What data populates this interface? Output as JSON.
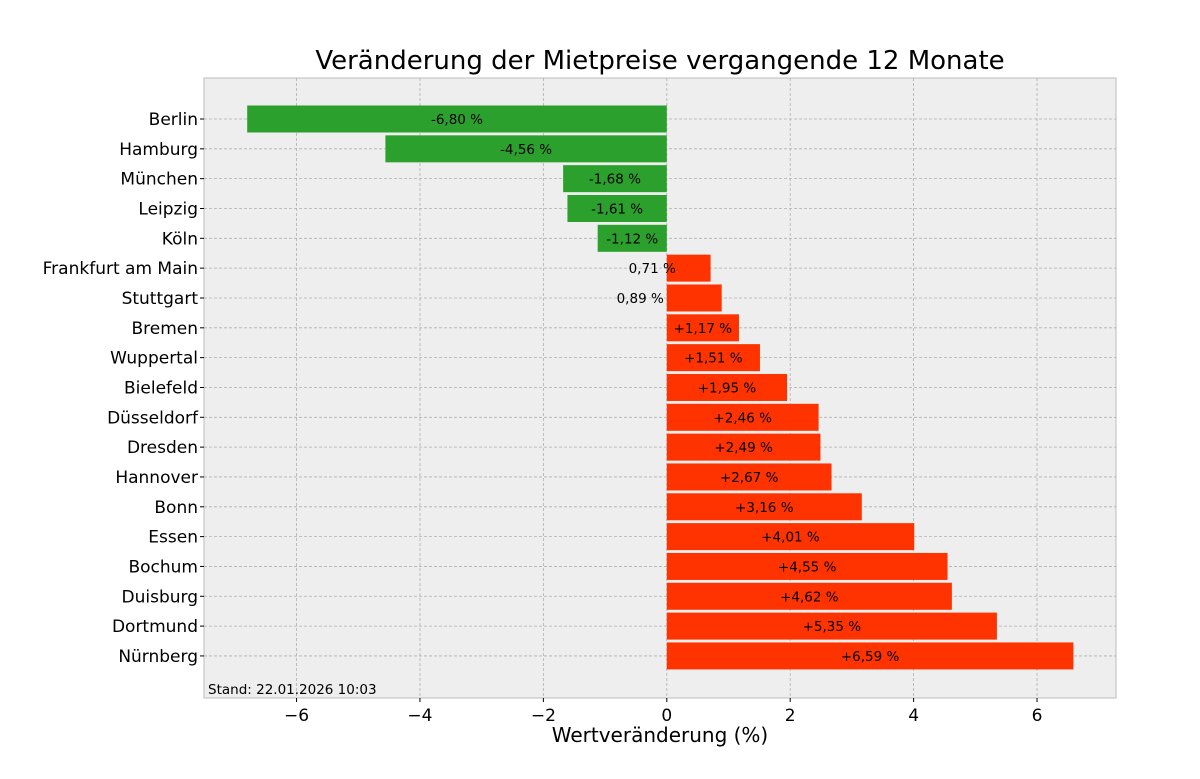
{
  "chart_data": {
    "type": "bar",
    "orientation": "horizontal",
    "title": "Veränderung der Mietpreise vergangende 12 Monate",
    "xlabel": "Wertveränderung (%)",
    "ylabel": "",
    "xlim": [
      -7.5,
      7.28
    ],
    "xticks": [
      -6,
      -4,
      -2,
      0,
      2,
      4,
      6
    ],
    "xtick_labels": [
      "−6",
      "−4",
      "−2",
      "0",
      "2",
      "4",
      "6"
    ],
    "grid": true,
    "annotation": "Stand: 22.01.2026 10:03",
    "colors": {
      "negative": "#2ca02c",
      "positive": "#ff3300",
      "background": "#eeeeee",
      "grid": "#b0b0b0"
    },
    "categories": [
      "Berlin",
      "Hamburg",
      "München",
      "Leipzig",
      "Köln",
      "Frankfurt am Main",
      "Stuttgart",
      "Bremen",
      "Wuppertal",
      "Bielefeld",
      "Düsseldorf",
      "Dresden",
      "Hannover",
      "Bonn",
      "Essen",
      "Bochum",
      "Duisburg",
      "Dortmund",
      "Nürnberg"
    ],
    "values": [
      -6.8,
      -4.56,
      -1.68,
      -1.61,
      -1.12,
      0.71,
      0.89,
      1.17,
      1.51,
      1.95,
      2.46,
      2.49,
      2.67,
      3.16,
      4.01,
      4.55,
      4.62,
      5.35,
      6.59
    ],
    "data_labels": [
      "-6,80 %",
      "-4,56 %",
      "-1,68 %",
      "-1,61 %",
      "-1,12 %",
      "0,71 %",
      "0,89 %",
      "+1,17 %",
      "+1,51 %",
      "+1,95 %",
      "+2,46 %",
      "+2,49 %",
      "+2,67 %",
      "+3,16 %",
      "+4,01 %",
      "+4,55 %",
      "+4,62 %",
      "+5,35 %",
      "+6,59 %"
    ]
  }
}
